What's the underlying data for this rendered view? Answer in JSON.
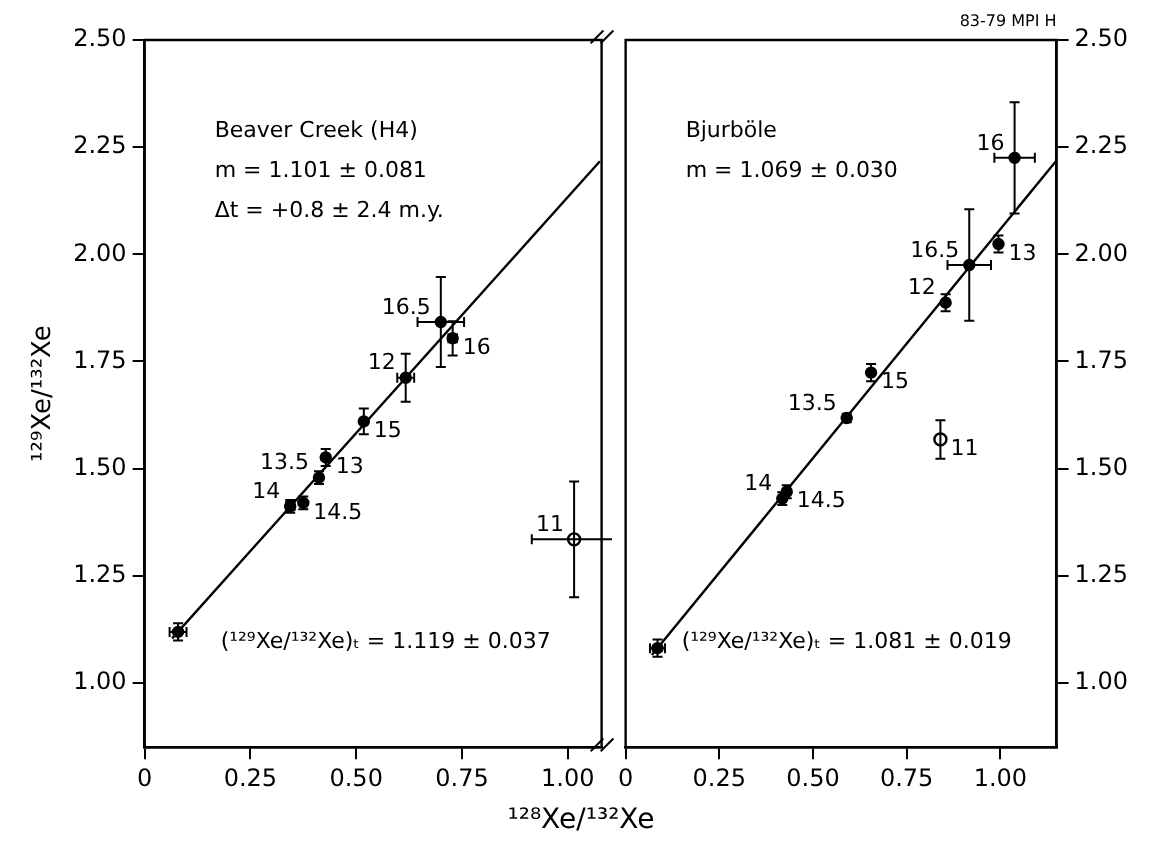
{
  "chart_data": [
    {
      "type": "scatter",
      "xlabel": "¹²⁸Xe/¹³²Xe",
      "ylabel": "¹²⁹Xe/¹³²Xe",
      "xlim": [
        0,
        1.08
      ],
      "xticks": [
        {
          "value": 0,
          "label": "0"
        },
        {
          "value": 0.25,
          "label": "0.25"
        },
        {
          "value": 0.5,
          "label": "0.50"
        },
        {
          "value": 0.75,
          "label": "0.75"
        },
        {
          "value": 1,
          "label": "1.00"
        }
      ],
      "ylim": [
        0.85,
        2.5
      ],
      "yticks": [
        {
          "value": 1,
          "label": "1.00"
        },
        {
          "value": 1.25,
          "label": "1.25"
        },
        {
          "value": 1.5,
          "label": "1.50"
        },
        {
          "value": 1.75,
          "label": "1.75"
        },
        {
          "value": 2,
          "label": "2.00"
        },
        {
          "value": 2.25,
          "label": "2.25"
        },
        {
          "value": 2.5,
          "label": "2.50"
        }
      ],
      "marker": "circle",
      "legend": false,
      "series": [
        {
          "type": "scatter",
          "color": "#000000",
          "x": [
            0.079,
            0.344,
            0.375,
            0.412,
            0.428,
            0.518,
            0.617,
            0.7,
            0.728
          ],
          "values": [
            1.119,
            1.412,
            1.42,
            1.479,
            1.526,
            1.61,
            1.712,
            1.842,
            1.804
          ],
          "errors": [
            0.02,
            0.015,
            0.015,
            0.015,
            0.02,
            0.03,
            0.056,
            0.105,
            0.04
          ],
          "xerrors": [
            0.02,
            0.01,
            null,
            null,
            null,
            null,
            0.02,
            0.055,
            0.01
          ]
        },
        {
          "type": "scatter",
          "color": "#000000",
          "x": [
            1.015
          ],
          "values": [
            1.335
          ],
          "errors": [
            0.135
          ],
          "xerrors": [
            0.1
          ]
        },
        {
          "type": "line",
          "color": "#000000",
          "marker": "none",
          "x": [
            0.065,
            1.076
          ],
          "values": [
            1.104,
            2.217
          ]
        }
      ],
      "annotations": [
        "Beaver Creek (H4)",
        "m = 1.101 ± 0.081",
        "Δt = +0.8 ± 2.4 m.y.",
        "(¹²⁹Xe/¹³²Xe)ₜ = 1.119 ± 0.037",
        {
          "text": "14",
          "x": 0.344,
          "y": 1.412
        },
        {
          "text": "14.5",
          "x": 0.375,
          "y": 1.42
        },
        {
          "text": "13.5",
          "x": 0.412,
          "y": 1.479
        },
        {
          "text": "13",
          "x": 0.428,
          "y": 1.526
        },
        {
          "text": "12",
          "x": 0.617,
          "y": 1.712
        },
        {
          "text": "15",
          "x": 0.518,
          "y": 1.61
        },
        {
          "text": "16.5",
          "x": 0.7,
          "y": 1.842
        },
        {
          "text": "16",
          "x": 0.728,
          "y": 1.804
        },
        {
          "text": "11",
          "x": 1.015,
          "y": 1.335
        }
      ]
    },
    {
      "type": "scatter",
      "subtitle": "83-79 MPI H",
      "xlim": [
        0,
        1.15
      ],
      "xticks": [
        {
          "value": 0,
          "label": "0"
        },
        {
          "value": 0.25,
          "label": "0.25"
        },
        {
          "value": 0.5,
          "label": "0.50"
        },
        {
          "value": 0.75,
          "label": "0.75"
        },
        {
          "value": 1,
          "label": "1.00"
        }
      ],
      "ylim": [
        0.85,
        2.5
      ],
      "yticks": [
        {
          "value": 1,
          "label": "1.00"
        },
        {
          "value": 1.25,
          "label": "1.25"
        },
        {
          "value": 1.5,
          "label": "1.50"
        },
        {
          "value": 1.75,
          "label": "1.75"
        },
        {
          "value": 2,
          "label": "2.00"
        },
        {
          "value": 2.25,
          "label": "2.25"
        },
        {
          "value": 2.5,
          "label": "2.50"
        }
      ],
      "marker": "circle",
      "legend": false,
      "series": [
        {
          "type": "scatter",
          "color": "#000000",
          "x": [
            0.085,
            0.418,
            0.43,
            0.59,
            0.655,
            0.854,
            0.917,
            0.995,
            1.038
          ],
          "values": [
            1.081,
            1.43,
            1.446,
            1.618,
            1.724,
            1.887,
            1.975,
            2.024,
            2.225
          ],
          "errors": [
            0.02,
            0.015,
            0.015,
            0.01,
            0.02,
            0.02,
            0.13,
            0.02,
            0.13
          ],
          "xerrors": [
            0.02,
            null,
            null,
            null,
            null,
            null,
            0.058,
            null,
            0.054
          ]
        },
        {
          "type": "scatter",
          "color": "#000000",
          "x": [
            0.84
          ],
          "values": [
            1.568
          ],
          "errors": [
            0.045
          ]
        },
        {
          "type": "line",
          "color": "#000000",
          "marker": "none",
          "x": [
            0.07,
            1.15
          ],
          "values": [
            1.065,
            2.219
          ]
        }
      ],
      "annotations": [
        "Bjurböle",
        "m = 1.069 ± 0.030",
        "(¹²⁹Xe/¹³²Xe)ₜ = 1.081 ± 0.019",
        {
          "text": "14",
          "x": 0.418,
          "y": 1.43
        },
        {
          "text": "14.5",
          "x": 0.43,
          "y": 1.446
        },
        {
          "text": "13.5",
          "x": 0.59,
          "y": 1.618
        },
        {
          "text": "15",
          "x": 0.655,
          "y": 1.724
        },
        {
          "text": "16.5",
          "x": 0.917,
          "y": 1.975
        },
        {
          "text": "11",
          "x": 0.84,
          "y": 1.568
        },
        {
          "text": "12",
          "x": 0.854,
          "y": 1.887
        },
        {
          "text": "13",
          "x": 0.995,
          "y": 2.024
        },
        {
          "text": "16",
          "x": 1.038,
          "y": 2.225
        }
      ]
    }
  ]
}
